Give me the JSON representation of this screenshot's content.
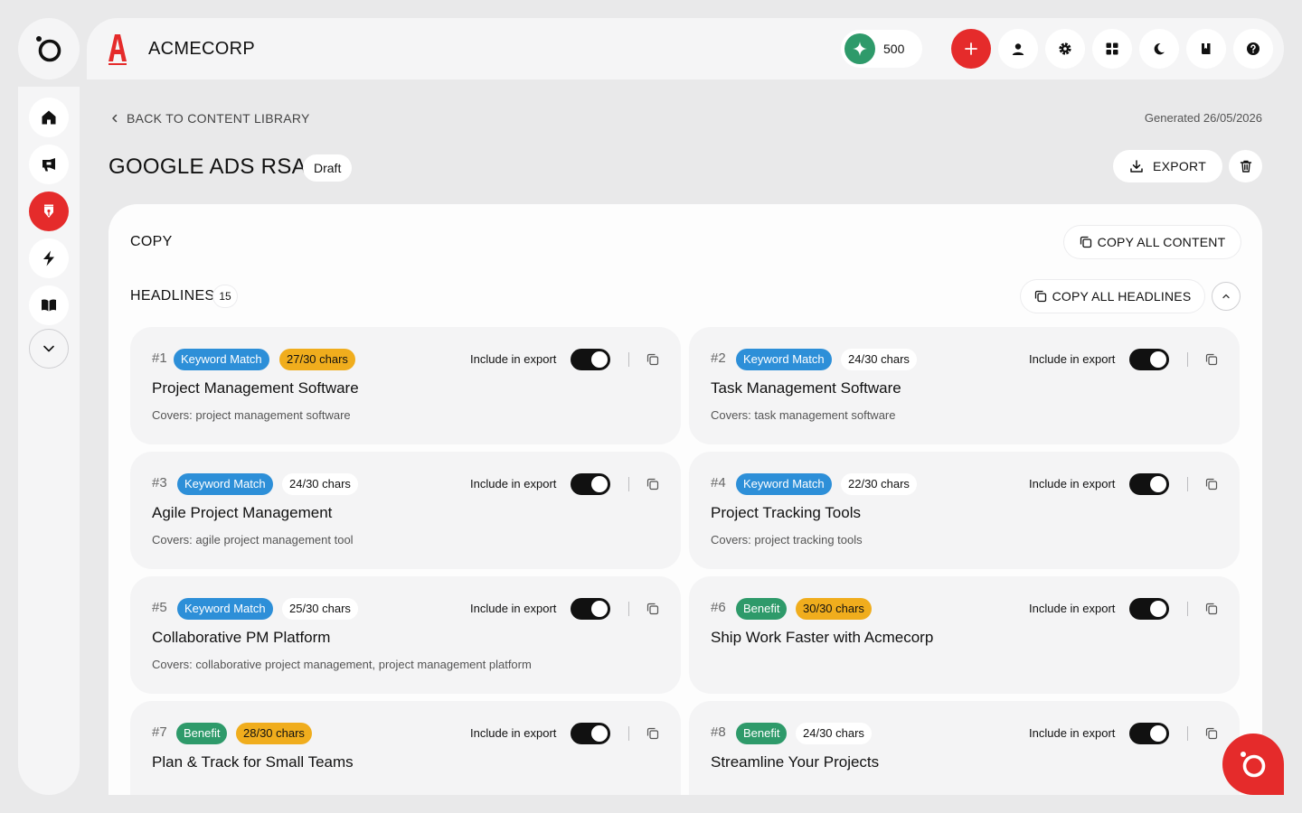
{
  "brand": {
    "name": "ACMECORP",
    "logo_letter": "A"
  },
  "topbar": {
    "credits": "500",
    "buttons": [
      "plus-icon",
      "user-icon",
      "gear-icon",
      "grid-icon",
      "moon-icon",
      "book-icon",
      "help-icon"
    ]
  },
  "sidebar": {
    "items": [
      {
        "name": "home",
        "icon": "home-icon",
        "active": false
      },
      {
        "name": "campaigns",
        "icon": "megaphone-icon",
        "active": false
      },
      {
        "name": "content",
        "icon": "pen-icon",
        "active": true
      },
      {
        "name": "automation",
        "icon": "bolt-icon",
        "active": false
      },
      {
        "name": "library",
        "icon": "book-open-icon",
        "active": false
      },
      {
        "name": "more",
        "icon": "chevron-down-icon",
        "active": false
      }
    ]
  },
  "header": {
    "back_label": "BACK TO CONTENT LIBRARY",
    "generated": "Generated 26/05/2026",
    "title": "GOOGLE ADS RSA",
    "status": "Draft",
    "export_label": "EXPORT"
  },
  "copy_section": {
    "title": "COPY",
    "copy_all_label": "COPY ALL CONTENT",
    "headlines_title": "HEADLINES",
    "headlines_count": "15",
    "copy_headlines_label": "COPY ALL HEADLINES",
    "include_label": "Include in export",
    "headlines": [
      {
        "num": "#1",
        "type": "Keyword Match",
        "chars": "27/30 chars",
        "warn": true,
        "text": "Project Management Software",
        "covers": "Covers: project management software",
        "include": true
      },
      {
        "num": "#2",
        "type": "Keyword Match",
        "chars": "24/30 chars",
        "warn": false,
        "text": "Task Management Software",
        "covers": "Covers: task management software",
        "include": true
      },
      {
        "num": "#3",
        "type": "Keyword Match",
        "chars": "24/30 chars",
        "warn": false,
        "text": "Agile Project Management",
        "covers": "Covers: agile project management tool",
        "include": true
      },
      {
        "num": "#4",
        "type": "Keyword Match",
        "chars": "22/30 chars",
        "warn": false,
        "text": "Project Tracking Tools",
        "covers": "Covers: project tracking tools",
        "include": true
      },
      {
        "num": "#5",
        "type": "Keyword Match",
        "chars": "25/30 chars",
        "warn": false,
        "text": "Collaborative PM Platform",
        "covers": "Covers: collaborative project management, project management platform",
        "include": true
      },
      {
        "num": "#6",
        "type": "Benefit",
        "chars": "30/30 chars",
        "warn": true,
        "text": "Ship Work Faster with Acmecorp",
        "covers": "",
        "include": true
      },
      {
        "num": "#7",
        "type": "Benefit",
        "chars": "28/30 chars",
        "warn": true,
        "text": "Plan & Track for Small Teams",
        "covers": "",
        "include": true
      },
      {
        "num": "#8",
        "type": "Benefit",
        "chars": "24/30 chars",
        "warn": false,
        "text": "Streamline Your Projects",
        "covers": "",
        "include": true
      }
    ]
  },
  "colors": {
    "accent": "#e52b2b",
    "keyword": "#2d8fd8",
    "benefit": "#2e9a6a",
    "warning": "#f0ad1d"
  }
}
